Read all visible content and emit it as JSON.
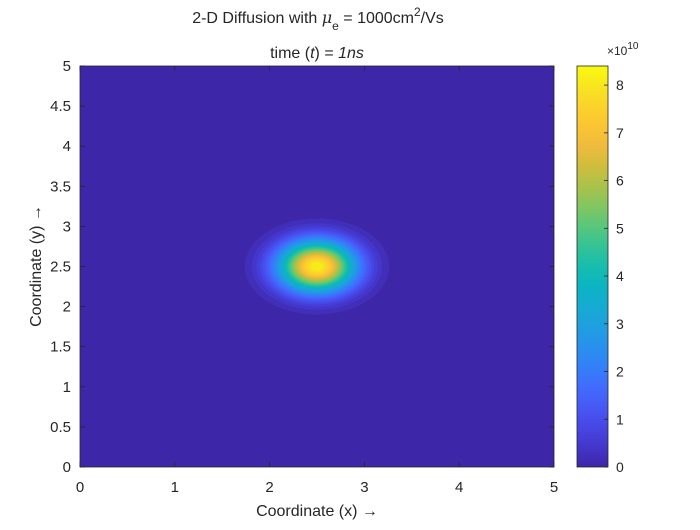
{
  "chart_data": {
    "type": "heatmap",
    "title": {
      "line1_prefix": "2-D Diffusion with ",
      "mu_symbol": "μ",
      "mu_subscript": "e",
      "line1_value": " = 1000cm",
      "line1_superscript": "2",
      "line1_suffix": "/Vs",
      "line2_prefix": "time (",
      "line2_var": "t",
      "line2_mid": ") = ",
      "line2_value": "1ns"
    },
    "xlabel": "Coordinate (x) →",
    "ylabel": "Coordinate (y) →",
    "xlim": [
      0,
      5
    ],
    "ylim": [
      0,
      5
    ],
    "xticks": [
      "0",
      "1",
      "2",
      "3",
      "4",
      "5"
    ],
    "yticks": [
      "0",
      "0.5",
      "1",
      "1.5",
      "2",
      "2.5",
      "3",
      "3.5",
      "4",
      "4.5",
      "5"
    ],
    "grid": false,
    "colormap": "parula",
    "peak": {
      "x": 2.5,
      "y": 2.5,
      "value": 83000000000.0,
      "sigma_x": 0.28,
      "sigma_y": 0.22,
      "background": 0
    },
    "colorbar": {
      "min": 0,
      "max": 84000000000.0,
      "ticks": [
        "0",
        "1",
        "2",
        "3",
        "4",
        "5",
        "6",
        "7",
        "8"
      ],
      "exponent_base": "×10",
      "exponent_power": "10"
    }
  }
}
